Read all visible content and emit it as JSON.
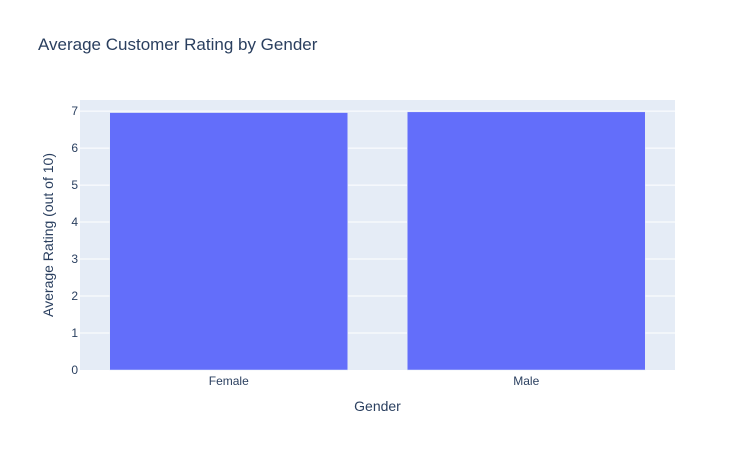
{
  "chart_data": {
    "type": "bar",
    "title": "Average Customer Rating by Gender",
    "xlabel": "Gender",
    "ylabel": "Average Rating (out of 10)",
    "categories": [
      "Female",
      "Male"
    ],
    "values": [
      6.96,
      6.98
    ],
    "ylim": [
      0,
      7.3
    ],
    "yticks": [
      0,
      1,
      2,
      3,
      4,
      5,
      6,
      7
    ],
    "bar_color": "#636efa",
    "plot_background": "#e5ecf6",
    "grid": true,
    "legend": "none"
  }
}
